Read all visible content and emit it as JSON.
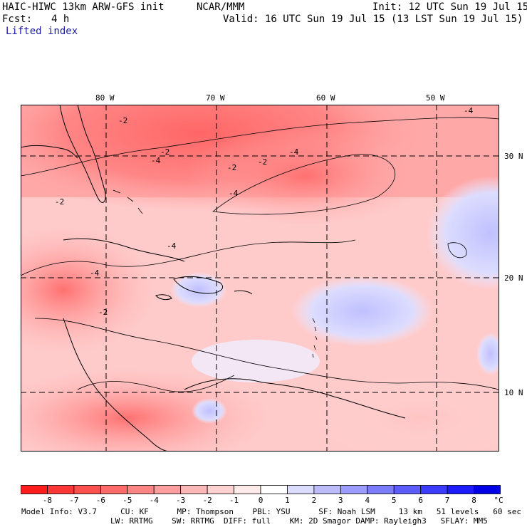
{
  "header": {
    "model": "HAIC-HIWC 13km ARW-GFS init",
    "org": "NCAR/MMM",
    "init": "Init: 12 UTC Sun 19 Jul 15",
    "fcst_label": "Fcst:",
    "fcst_value": "4 h",
    "valid": "Valid: 16 UTC Sun 19 Jul 15 (13 LST Sun 19 Jul 15)",
    "field": "Lifted index"
  },
  "map": {
    "longitude_labels": [
      "80 W",
      "70 W",
      "60 W",
      "50 W"
    ],
    "latitude_labels": [
      "30 N",
      "20 N",
      "10 N"
    ],
    "contour_labels": [
      "-2",
      "-4",
      "-2",
      "-4",
      "-2",
      "-4",
      "-4",
      "-2",
      "-4",
      "-2",
      "-4",
      "-2"
    ]
  },
  "colorbar": {
    "ticks": [
      "-8",
      "-7",
      "-6",
      "-5",
      "-4",
      "-3",
      "-2",
      "-1",
      "0",
      "1",
      "2",
      "3",
      "4",
      "5",
      "6",
      "7",
      "8"
    ],
    "unit": "°C",
    "colors": [
      "#ff1c1c",
      "#ff3636",
      "#ff5050",
      "#ff6a6a",
      "#ff8484",
      "#ff9e9e",
      "#ffb8b8",
      "#ffd2d2",
      "#ffeaea",
      "#ffffff",
      "#dcdcff",
      "#bcbcff",
      "#9c9cff",
      "#7c7cff",
      "#5c5cff",
      "#3c3cff",
      "#1c1cff",
      "#0000e6"
    ]
  },
  "footer": {
    "line1": "Model Info: V3.7     CU: KF      MP: Thompson    PBL: YSU      SF: Noah LSM     13 km   51 levels   60 sec",
    "line2": "LW: RRTMG    SW: RRTMG  DIFF: full    KM: 2D Smagor DAMP: Rayleigh3   SFLAY: MM5"
  }
}
